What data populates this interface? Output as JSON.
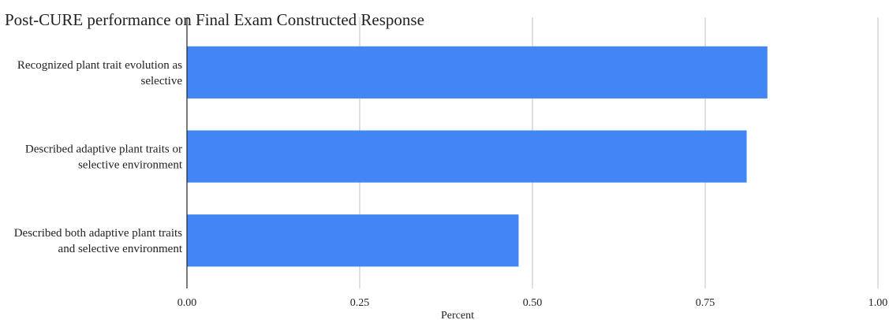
{
  "chart_data": {
    "type": "bar",
    "orientation": "horizontal",
    "title": "Post-CURE performance on Final Exam Constructed Response",
    "xlabel": "Percent",
    "ylabel": "",
    "categories": [
      [
        "Recognized plant trait evolution as",
        "selective"
      ],
      [
        "Described adaptive plant traits or",
        "selective environment"
      ],
      [
        "Described both adaptive plant traits",
        "and selective environment"
      ]
    ],
    "values": [
      0.84,
      0.81,
      0.48
    ],
    "xlim": [
      0,
      1
    ],
    "xticks": [
      "0.00",
      "0.25",
      "0.50",
      "0.75",
      "1.00"
    ],
    "grid": "vertical",
    "bar_color": "#4285f4"
  }
}
